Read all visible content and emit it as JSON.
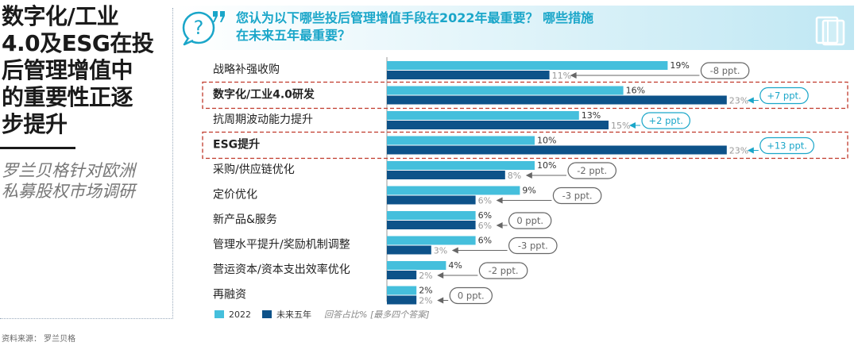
{
  "sidebar": {
    "title_lines": [
      "数字化/工业",
      "4.0及ESG在投",
      "后管理增值中",
      "的重要性正逐",
      "步提升"
    ],
    "subtitle_lines": [
      "罗兰贝格针对欧洲",
      "私募股权市场调研"
    ]
  },
  "header": {
    "title_lines": [
      "您认为以下哪些投后管理增值手段在2022年最重要？ 哪些措施",
      "在未来五年最重要？"
    ],
    "icon": "question-speech-icon",
    "decor_icon": "book-stack-icon"
  },
  "source_text": "资料来源： 罗兰贝格",
  "colors": {
    "series_2022": "#45bfdc",
    "series_future": "#0d5289",
    "accent": "#1aa6c9",
    "highlight_border": "#c0392b"
  },
  "chart_data": {
    "type": "bar",
    "orientation": "horizontal",
    "unit": "%",
    "categories": [
      "战略补强收购",
      "数字化/工业4.0研发",
      "抗周期波动能力提升",
      "ESG提升",
      "采购/供应链优化",
      "定价优化",
      "新产品&服务",
      "管理水平提升/奖励机制调整",
      "营运资本/资本支出效率优化",
      "再融资"
    ],
    "highlighted": [
      false,
      true,
      false,
      true,
      false,
      false,
      false,
      false,
      false,
      false
    ],
    "series": [
      {
        "name": "2022",
        "values": [
          19,
          16,
          13,
          10,
          10,
          9,
          6,
          6,
          4,
          2
        ]
      },
      {
        "name": "未来五年",
        "values": [
          11,
          23,
          15,
          23,
          8,
          6,
          6,
          3,
          2,
          2
        ]
      }
    ],
    "change_labels": [
      "-8 ppt.",
      "+7 ppt.",
      "+2 ppt.",
      "+13 ppt.",
      "-2 ppt.",
      "-3 ppt.",
      "0 ppt.",
      "-3 ppt.",
      "-2 ppt.",
      "0 ppt."
    ],
    "change_positive": [
      false,
      true,
      true,
      true,
      false,
      false,
      false,
      false,
      false,
      false
    ],
    "legend": {
      "items": [
        "2022",
        "未来五年"
      ],
      "note": "回答占比% [最多四个答案]"
    }
  }
}
